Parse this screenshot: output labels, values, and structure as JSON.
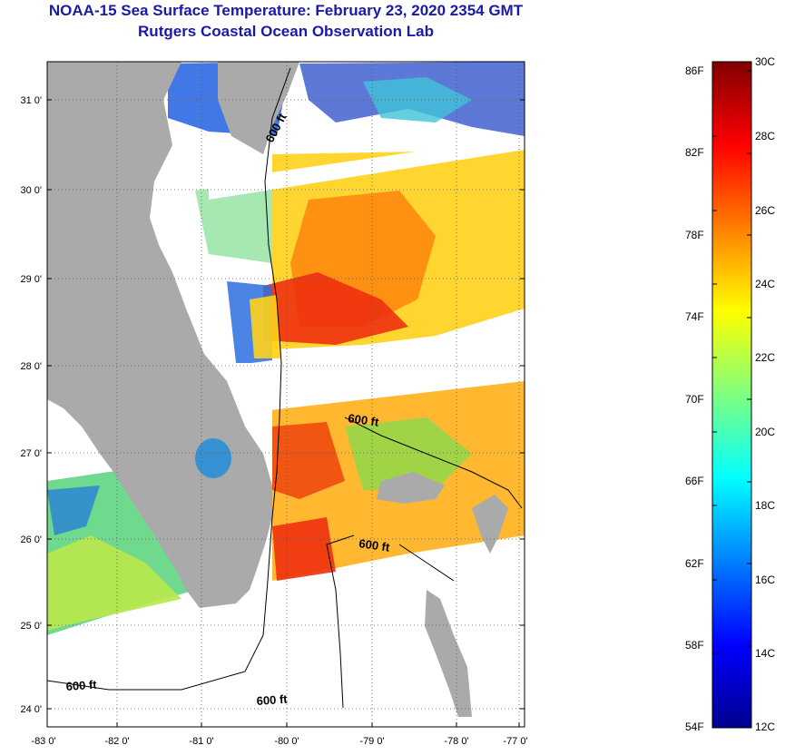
{
  "title": {
    "line1": "NOAA-15 Sea Surface Temperature:  February 23, 2020 2354 GMT",
    "line2": "Rutgers Coastal Ocean Observation Lab"
  },
  "map": {
    "lat_ticks": [
      "31 0'",
      "30 0'",
      "29 0'",
      "28 0'",
      "27 0'",
      "26 0'",
      "25 0'",
      "24 0'"
    ],
    "lon_ticks": [
      "-83 0'",
      "-82 0'",
      "-81 0'",
      "-80 0'",
      "-79 0'",
      "-78 0'",
      "-77 0'"
    ],
    "contour_labels": [
      "600 ft",
      "600 ft",
      "600 ft",
      "600 ft",
      "600 ft"
    ],
    "land_color": "#aaaaaa",
    "grid": "dotted"
  },
  "colorbar": {
    "fahrenheit_labels": [
      "86F",
      "82F",
      "78F",
      "74F",
      "70F",
      "66F",
      "62F",
      "58F",
      "54F"
    ],
    "celsius_labels": [
      "30C",
      "28C",
      "26C",
      "24C",
      "22C",
      "20C",
      "18C",
      "16C",
      "14C",
      "12C"
    ],
    "range_c": [
      12,
      30
    ],
    "colormap": "jet"
  }
}
